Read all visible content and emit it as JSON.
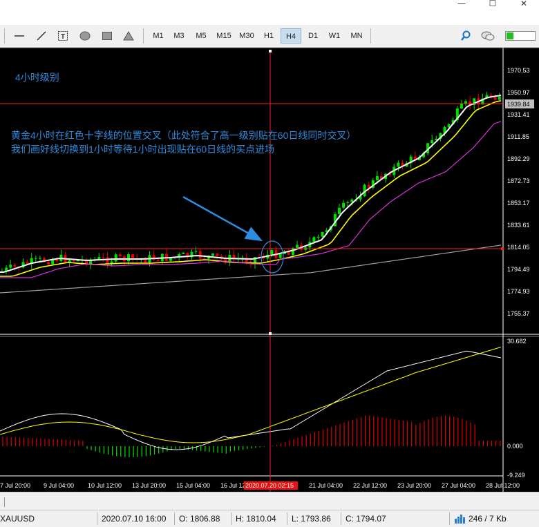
{
  "window": {
    "minimize": "—",
    "maximize": "☐",
    "close": "✕"
  },
  "toolbar": {
    "timeframes": [
      "M1",
      "M3",
      "M5",
      "M15",
      "M30",
      "H1",
      "H4",
      "D1",
      "W1",
      "MN"
    ],
    "active_timeframe": "H4",
    "tools": [
      "horizontal-line-icon",
      "trendline-icon",
      "text-label-icon",
      "ellipse-icon",
      "rectangle-icon",
      "triangle-icon"
    ],
    "right_tools": [
      "zoom-icon",
      "chat-icon",
      "connection-status-icon"
    ]
  },
  "chart": {
    "annotation_level": "4小时级别",
    "annotation_line1": "黄金4小时在红色十字线的位置交叉（此处符合了高一级别贴在60日线同时交叉）",
    "annotation_line2": "我们画好线切换到1小时等待1小时出现贴在60日线的买点进场",
    "price_labels": [
      "1970.53",
      "1950.97",
      "1931.41",
      "1911.85",
      "1892.29",
      "1872.73",
      "1853.17",
      "1833.61",
      "1814.05",
      "1794.49",
      "1774.93",
      "1755.37"
    ],
    "current_price": "1939.84",
    "macd_labels": [
      "30.682",
      "0.000",
      "-9.249"
    ],
    "time_labels": [
      "7 Jul 20:00",
      "9 Jul 04:00",
      "10 Jul 12:00",
      "13 Jul 20:00",
      "15 Jul 04:00",
      "16 Jul 12:00",
      "21 Jul 04:00",
      "22 Jul 12:00",
      "23 Jul 20:00",
      "27 Jul 04:00",
      "28 Jul 12:00"
    ],
    "crosshair_time": "2020.07.20 02:15",
    "colors": {
      "bull": "#00e000",
      "bear": "#e00000",
      "ma_fast": "#ffffff",
      "ma_mid": "#ffff00",
      "ma_slow": "#d633d6",
      "ma_long": "#a0a0a0",
      "crosshair": "#ff2020",
      "annotation": "#2e8bde"
    }
  },
  "status": {
    "symbol": "XAUUSD",
    "datetime": "2020.07.10 16:00",
    "open": "O: 1806.88",
    "high": "H: 1810.04",
    "low": "L: 1793.86",
    "close": "C: 1794.07",
    "traffic": "246 / 7 Kb"
  }
}
